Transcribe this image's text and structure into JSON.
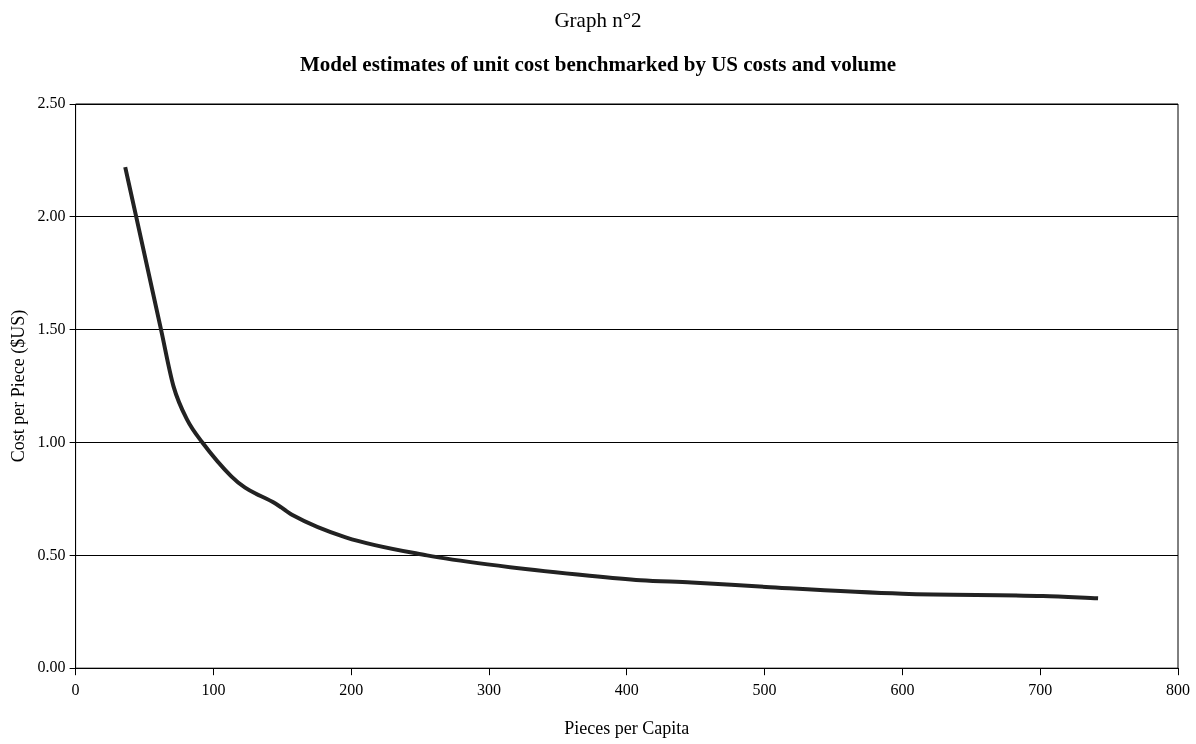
{
  "chart_data": {
    "type": "line",
    "title": "Graph n°2",
    "subtitle": "Model estimates of unit cost benchmarked by US costs and volume",
    "xlabel": "Pieces per Capita",
    "ylabel": "Cost per Piece ($US)",
    "series": [
      {
        "color": "#222222",
        "x": [
          36,
          44,
          62,
          71,
          81,
          92,
          113,
          123,
          145,
          157,
          196,
          255,
          299,
          373,
          410,
          447,
          501,
          600,
          702,
          742
        ],
        "values": [
          2.22,
          2.0,
          1.5,
          1.25,
          1.1,
          1.0,
          0.85,
          0.8,
          0.73,
          0.68,
          0.58,
          0.5,
          0.46,
          0.41,
          0.39,
          0.38,
          0.36,
          0.33,
          0.32,
          0.31
        ]
      }
    ],
    "xlim": [
      0,
      800
    ],
    "xticks": [
      0,
      100,
      200,
      300,
      400,
      500,
      600,
      700,
      800
    ],
    "ylim": [
      0,
      2.5
    ],
    "yticks": [
      {
        "value": 0,
        "label": "0.00"
      },
      {
        "value": 0.5,
        "label": "0.50"
      },
      {
        "value": 1,
        "label": "1.00"
      },
      {
        "value": 1.5,
        "label": "1.50"
      },
      {
        "value": 2,
        "label": "2.00"
      },
      {
        "value": 2.5,
        "label": "2.50"
      }
    ],
    "grid": "y",
    "legend": false,
    "marker": "none",
    "line_style": "solid"
  }
}
